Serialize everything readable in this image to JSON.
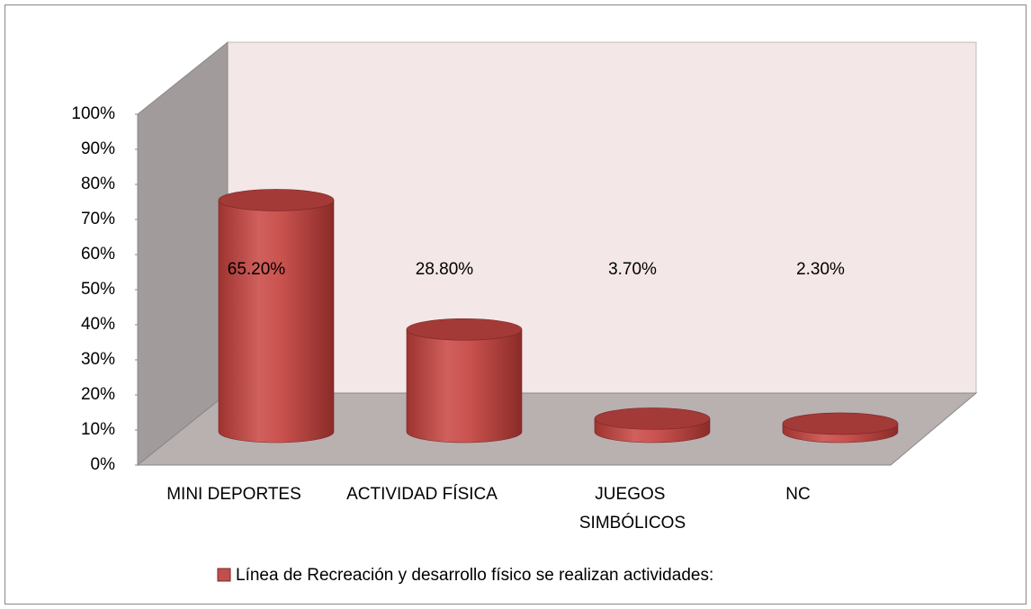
{
  "chart_data": {
    "type": "bar3d",
    "categories": [
      "MINI DEPORTES",
      "ACTIVIDAD FÍSICA",
      "JUEGOS SIMBÓLICOS",
      "NC"
    ],
    "series": [
      {
        "name": "Línea de Recreación y desarrollo físico se realizan actividades:",
        "color": "#c0504d",
        "values": [
          65.2,
          28.8,
          3.7,
          2.3
        ],
        "value_labels": [
          "65.20%",
          "28.80%",
          "3.70%",
          "2.30%"
        ]
      }
    ],
    "ylim": [
      0,
      100
    ],
    "yticks": [
      {
        "value": 0,
        "label": "0%"
      },
      {
        "value": 10,
        "label": "10%"
      },
      {
        "value": 20,
        "label": "20%"
      },
      {
        "value": 30,
        "label": "30%"
      },
      {
        "value": 40,
        "label": "40%"
      },
      {
        "value": 50,
        "label": "50%"
      },
      {
        "value": 60,
        "label": "60%"
      },
      {
        "value": 70,
        "label": "70%"
      },
      {
        "value": 80,
        "label": "80%"
      },
      {
        "value": 90,
        "label": "90%"
      },
      {
        "value": 100,
        "label": "100%"
      }
    ],
    "legend": "bottom"
  }
}
